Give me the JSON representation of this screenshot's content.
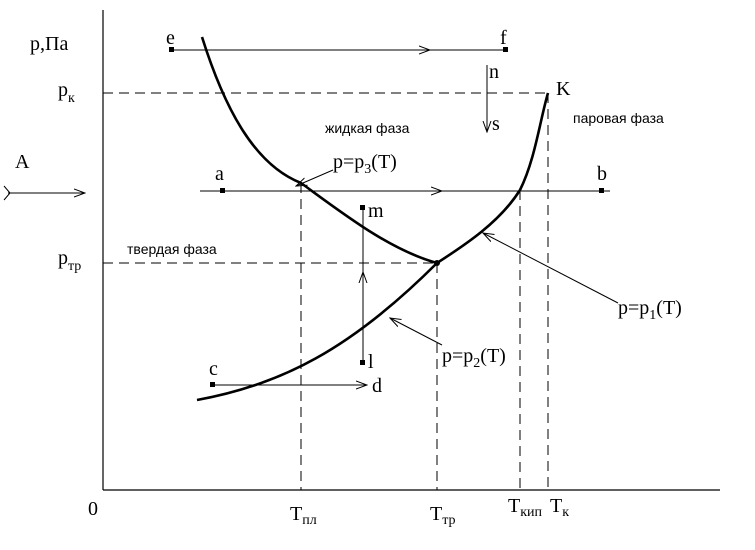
{
  "axes": {
    "y_label": "p,Па",
    "origin": "0",
    "p_k": {
      "main": "p",
      "sub": "к"
    },
    "p_tr": {
      "main": "p",
      "sub": "тр"
    },
    "T_pl": {
      "main": "T",
      "sub": "пл"
    },
    "T_tr": {
      "main": "T",
      "sub": "тр"
    },
    "T_kip": {
      "main": "T",
      "sub": "кип"
    },
    "T_k": {
      "main": "T",
      "sub": "к"
    }
  },
  "phases": {
    "liquid": "жидкая фаза",
    "vapor": "паровая фаза",
    "solid": "твердая фаза"
  },
  "curves": {
    "p3": {
      "main": "p=p",
      "sub": "3",
      "tail": "(T)"
    },
    "p1": {
      "main": "p=p",
      "sub": "1",
      "tail": "(T)"
    },
    "p2": {
      "main": "p=p",
      "sub": "2",
      "tail": "(T)"
    }
  },
  "points": {
    "A": "A",
    "e": "e",
    "f": "f",
    "n": "n",
    "s": "s",
    "K": "K",
    "a": "a",
    "b": "b",
    "m": "m",
    "l": "l",
    "c": "c",
    "d": "d"
  }
}
